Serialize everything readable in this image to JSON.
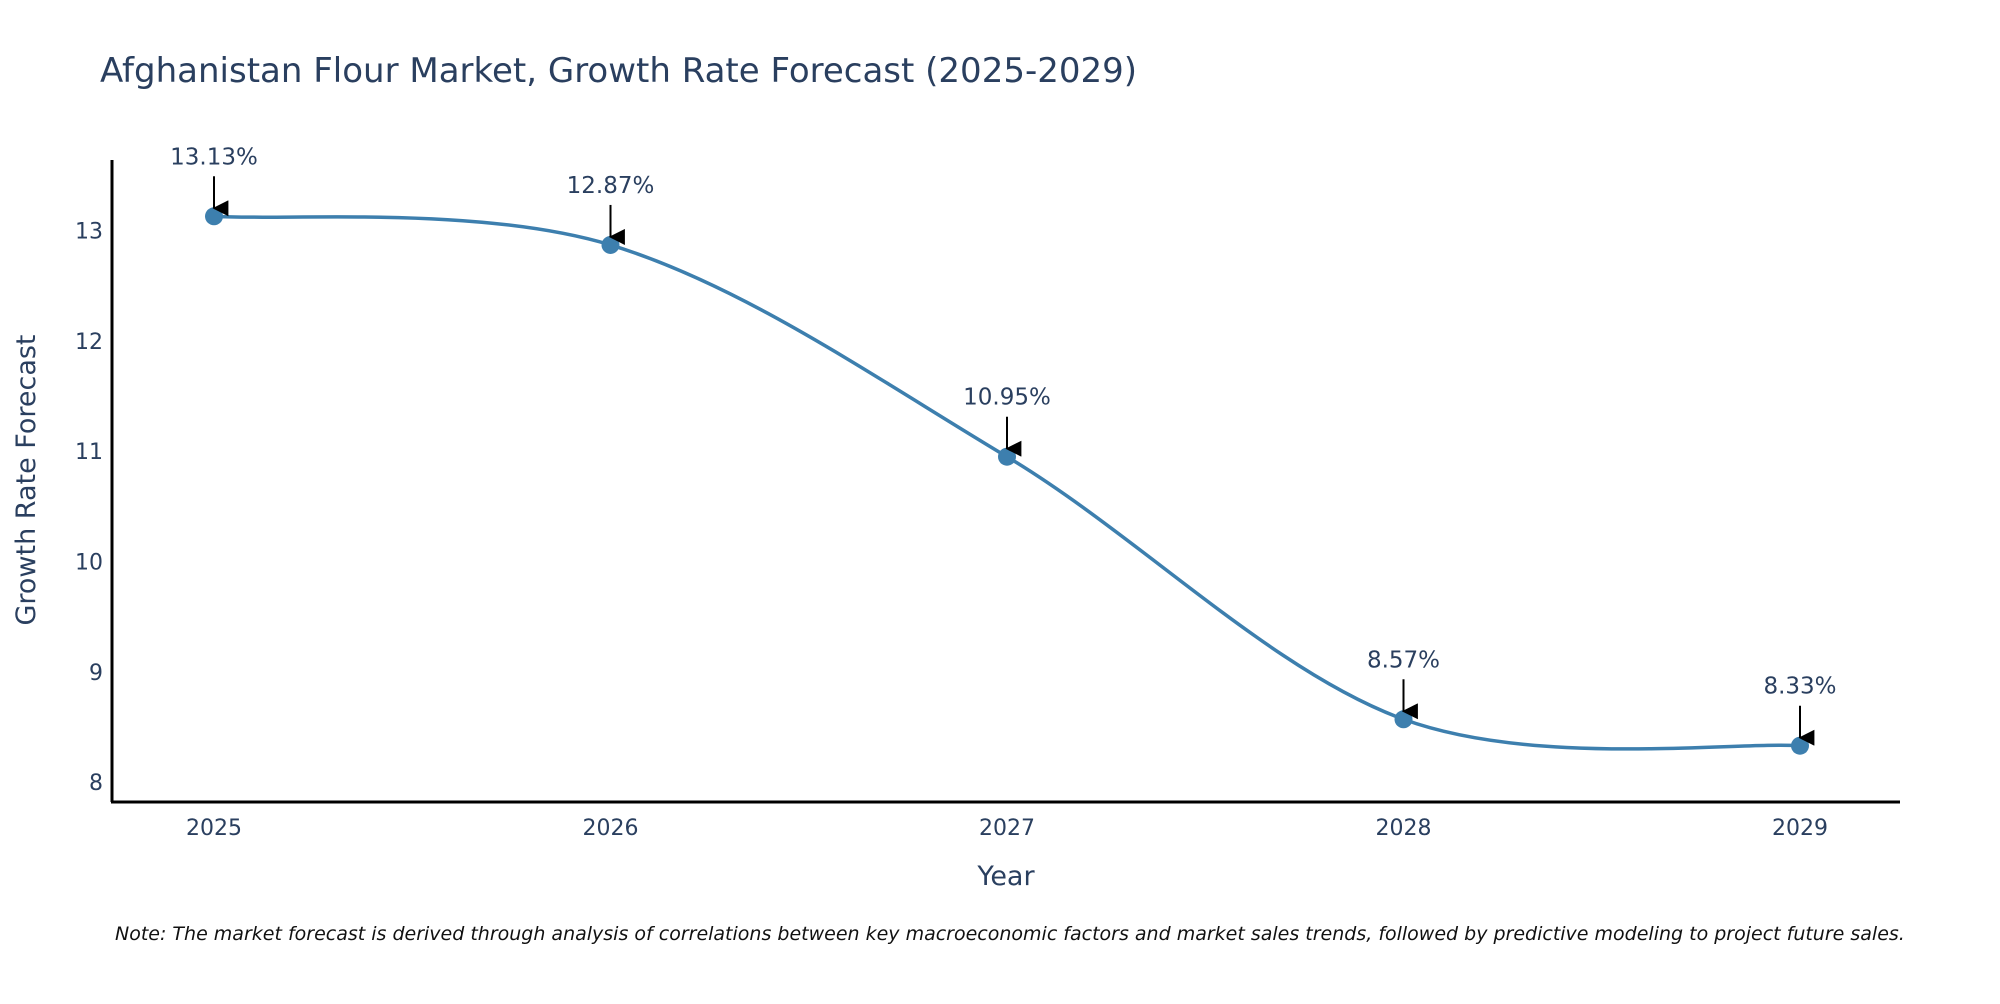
{
  "chart_data": {
    "type": "line",
    "title": "Afghanistan Flour Market, Growth Rate Forecast (2025-2029)",
    "xlabel": "Year",
    "ylabel": "Growth Rate Forecast",
    "categories": [
      "2025",
      "2026",
      "2027",
      "2028",
      "2029"
    ],
    "series": [
      {
        "name": "Growth Rate Forecast",
        "values": [
          13.13,
          12.87,
          10.95,
          8.57,
          8.33
        ],
        "color": "#3d7fae"
      }
    ],
    "data_labels": [
      "13.13%",
      "12.87%",
      "10.95%",
      "8.57%",
      "8.33%"
    ],
    "yticks": [
      "8",
      "9",
      "10",
      "11",
      "12",
      "13"
    ],
    "ylim": [
      7.82,
      13.64
    ],
    "grid": false,
    "note": "Note: The market forecast is derived through analysis of correlations between key macroeconomic factors and market sales trends, followed by predictive modeling to project future sales."
  }
}
